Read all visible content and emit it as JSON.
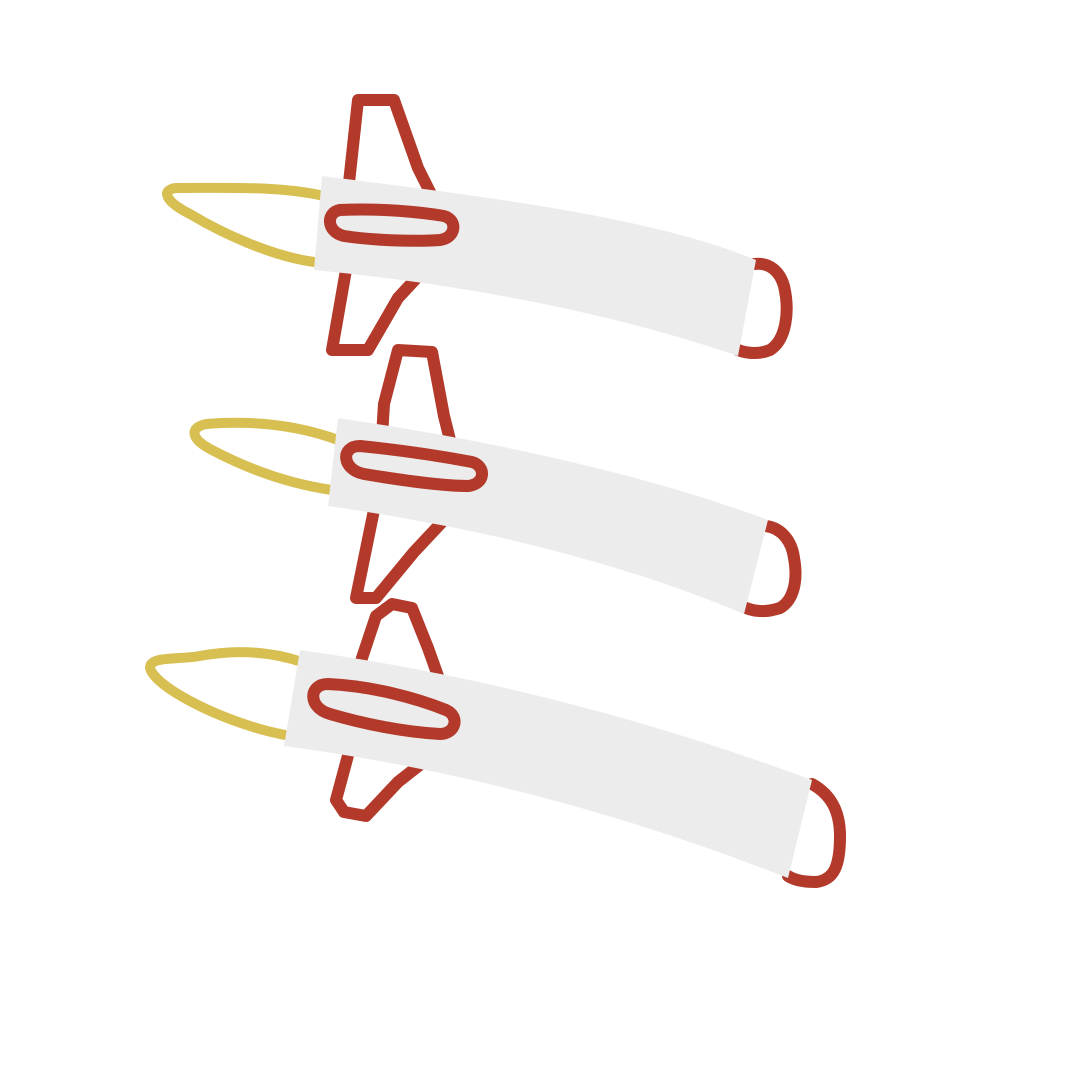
{
  "illustration": {
    "subject": "three-rockets",
    "count": 3,
    "colors": {
      "background": "#ffffff",
      "body": "#ececec",
      "outline": "#b33a2b",
      "flame": "#d8bf52"
    },
    "icons": [
      "rocket-icon",
      "rocket-icon",
      "rocket-icon"
    ]
  }
}
